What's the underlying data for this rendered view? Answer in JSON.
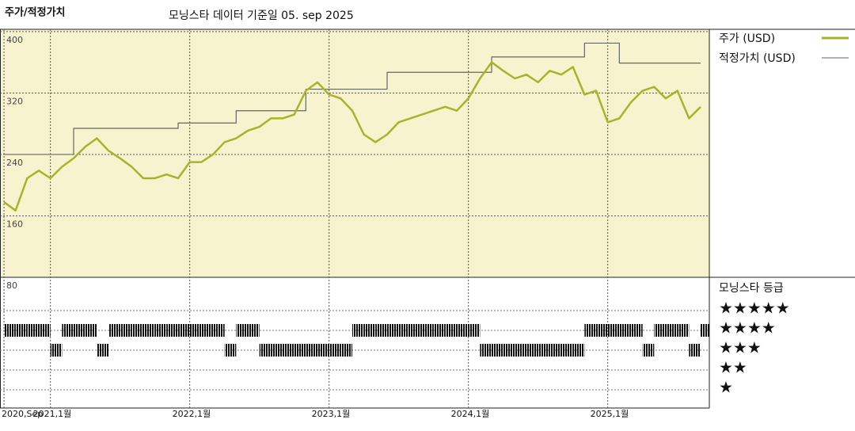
{
  "chart_data": {
    "type": "line",
    "title": "주가/적정가치",
    "subtitle": "모닝스타 데이터 기준일 05. sep 2025",
    "x": [
      "2020-09",
      "2020-10",
      "2020-11",
      "2020-12",
      "2021-01",
      "2021-02",
      "2021-03",
      "2021-04",
      "2021-05",
      "2021-06",
      "2021-07",
      "2021-08",
      "2021-09",
      "2021-10",
      "2021-11",
      "2021-12",
      "2022-01",
      "2022-02",
      "2022-03",
      "2022-04",
      "2022-05",
      "2022-06",
      "2022-07",
      "2022-08",
      "2022-09",
      "2022-10",
      "2022-11",
      "2022-12",
      "2023-01",
      "2023-02",
      "2023-03",
      "2023-04",
      "2023-05",
      "2023-06",
      "2023-07",
      "2023-08",
      "2023-09",
      "2023-10",
      "2023-11",
      "2023-12",
      "2024-01",
      "2024-02",
      "2024-03",
      "2024-04",
      "2024-05",
      "2024-06",
      "2024-07",
      "2024-08",
      "2024-09",
      "2024-10",
      "2024-11",
      "2024-12",
      "2025-01",
      "2025-02",
      "2025-03",
      "2025-04",
      "2025-05",
      "2025-06",
      "2025-07",
      "2025-08",
      "2025-09"
    ],
    "series": [
      {
        "name": "주가 (USD)",
        "color": "#a9b22c",
        "values": [
          178,
          167,
          209,
          219,
          209,
          224,
          235,
          250,
          261,
          245,
          235,
          224,
          209,
          209,
          214,
          209,
          230,
          230,
          240,
          256,
          261,
          271,
          276,
          287,
          287,
          292,
          323,
          334,
          318,
          313,
          297,
          266,
          256,
          266,
          282,
          287,
          292,
          297,
          302,
          297,
          313,
          339,
          360,
          349,
          339,
          344,
          334,
          349,
          344,
          354,
          318,
          323,
          282,
          287,
          308,
          323,
          328,
          313,
          323,
          287,
          302
        ]
      },
      {
        "name": "적정가치 (USD)",
        "color": "#666666",
        "step": true,
        "values": [
          240,
          240,
          240,
          240,
          240,
          240,
          274,
          274,
          274,
          274,
          274,
          274,
          274,
          274,
          274,
          281,
          281,
          281,
          281,
          281,
          297,
          297,
          297,
          297,
          297,
          297,
          325,
          325,
          325,
          325,
          325,
          325,
          325,
          347,
          347,
          347,
          347,
          347,
          347,
          347,
          347,
          347,
          367,
          367,
          367,
          367,
          367,
          367,
          367,
          367,
          385,
          385,
          385,
          359,
          359,
          359,
          359,
          359,
          359,
          359,
          359
        ]
      }
    ],
    "xlim": [
      "2020-09",
      "2025-09"
    ],
    "xticks": [
      {
        "value": "2020-09",
        "label": "2020,Sep"
      },
      {
        "value": "2021-01",
        "label": "2021,1월"
      },
      {
        "value": "2022-01",
        "label": "2022,1월"
      },
      {
        "value": "2023-01",
        "label": "2023,1월"
      },
      {
        "value": "2024-01",
        "label": "2024,1월"
      },
      {
        "value": "2025-01",
        "label": "2025,1월"
      }
    ],
    "ylim": [
      80,
      403
    ],
    "yticks": [
      80,
      160,
      240,
      320,
      400
    ],
    "grid": true,
    "ratings": {
      "title": "모닝스타 등급",
      "levels": [
        {
          "value": 5,
          "label": "★★★★★"
        },
        {
          "value": 4,
          "label": "★★★★"
        },
        {
          "value": 3,
          "label": "★★★"
        },
        {
          "value": 2,
          "label": "★★"
        },
        {
          "value": 1,
          "label": "★"
        }
      ],
      "values": [
        4,
        4,
        4,
        4,
        3,
        4,
        4,
        4,
        3,
        4,
        4,
        4,
        4,
        4,
        4,
        4,
        4,
        4,
        4,
        3,
        4,
        4,
        3,
        3,
        3,
        3,
        3,
        3,
        3,
        3,
        4,
        4,
        4,
        4,
        4,
        4,
        4,
        4,
        4,
        4,
        4,
        3,
        3,
        3,
        3,
        3,
        3,
        3,
        3,
        3,
        4,
        4,
        4,
        4,
        4,
        3,
        4,
        4,
        4,
        3,
        4
      ]
    }
  }
}
